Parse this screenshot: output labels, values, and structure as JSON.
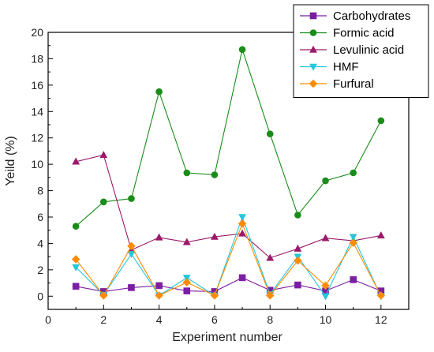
{
  "chart_data": {
    "type": "line",
    "xlabel": "Experiment number",
    "ylabel": "Yeild (%)",
    "xlim": [
      0,
      13
    ],
    "ylim": [
      -1,
      20
    ],
    "x_ticks": [
      0,
      2,
      4,
      6,
      8,
      10,
      12
    ],
    "y_ticks": [
      0,
      2,
      4,
      6,
      8,
      10,
      12,
      14,
      16,
      18,
      20
    ],
    "grid": false,
    "legend_position": "top-right",
    "x": [
      1,
      2,
      3,
      4,
      5,
      6,
      7,
      8,
      9,
      10,
      11,
      12
    ],
    "series": [
      {
        "name": "Carbohydrates",
        "color": "#7b1fa2",
        "marker": "square",
        "values": [
          0.75,
          0.35,
          0.65,
          0.8,
          0.4,
          0.35,
          1.4,
          0.45,
          0.85,
          0.4,
          1.25,
          0.4
        ]
      },
      {
        "name": "Formic acid",
        "color": "#1a8c1a",
        "marker": "circle",
        "values": [
          5.3,
          7.15,
          7.4,
          15.5,
          9.35,
          9.2,
          18.7,
          12.3,
          6.15,
          8.75,
          9.35,
          13.3
        ]
      },
      {
        "name": "Levulinic acid",
        "color": "#9b1a6a",
        "marker": "triangle-up",
        "values": [
          10.2,
          10.7,
          3.5,
          4.45,
          4.1,
          4.5,
          4.75,
          2.9,
          3.6,
          4.4,
          4.2,
          4.6
        ]
      },
      {
        "name": "HMF",
        "color": "#26c6da",
        "marker": "triangle-down",
        "values": [
          2.2,
          0.1,
          3.2,
          0.05,
          1.4,
          0.05,
          6.0,
          0.15,
          3.0,
          0.0,
          4.5,
          0.0
        ]
      },
      {
        "name": "Furfural",
        "color": "#ff8c00",
        "marker": "diamond",
        "values": [
          2.8,
          0.05,
          3.8,
          0.05,
          1.05,
          0.05,
          5.5,
          0.05,
          2.7,
          0.8,
          4.05,
          0.05
        ]
      }
    ]
  }
}
